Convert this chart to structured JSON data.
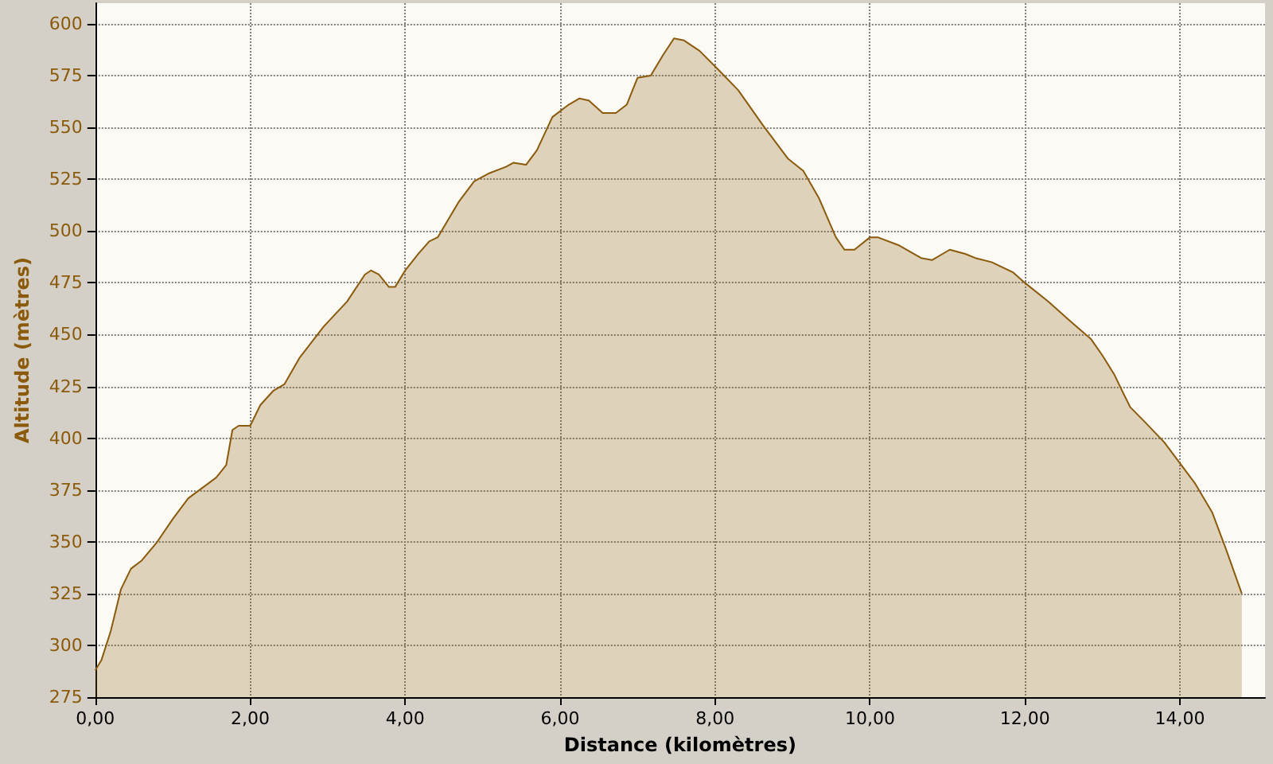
{
  "chart_data": {
    "type": "area",
    "xlabel": "Distance (kilomètres)",
    "ylabel": "Altitude (mètres)",
    "xlim": [
      0,
      15.1
    ],
    "ylim": [
      275,
      610
    ],
    "xticks": [
      {
        "value": 0,
        "label": "0,00"
      },
      {
        "value": 2,
        "label": "2,00"
      },
      {
        "value": 4,
        "label": "4,00"
      },
      {
        "value": 6,
        "label": "6,00"
      },
      {
        "value": 8,
        "label": "8,00"
      },
      {
        "value": 10,
        "label": "10,00"
      },
      {
        "value": 12,
        "label": "12,00"
      },
      {
        "value": 14,
        "label": "14,00"
      }
    ],
    "yticks": [
      275,
      300,
      325,
      350,
      375,
      400,
      425,
      450,
      475,
      500,
      525,
      550,
      575,
      600
    ],
    "grid": true,
    "marker": "none",
    "line_style": "solid",
    "series": [
      {
        "color": "#8b5a0a",
        "x": [
          0.0,
          0.08,
          0.2,
          0.33,
          0.46,
          0.6,
          0.8,
          1.0,
          1.2,
          1.38,
          1.56,
          1.69,
          1.77,
          1.85,
          2.0,
          2.13,
          2.3,
          2.44,
          2.64,
          2.95,
          3.25,
          3.48,
          3.56,
          3.66,
          3.79,
          3.87,
          4.0,
          4.17,
          4.31,
          4.42,
          4.69,
          4.89,
          5.09,
          5.3,
          5.4,
          5.56,
          5.7,
          5.9,
          6.11,
          6.25,
          6.37,
          6.55,
          6.72,
          6.86,
          7.0,
          7.17,
          7.33,
          7.47,
          7.6,
          7.8,
          8.04,
          8.3,
          8.62,
          8.94,
          9.14,
          9.34,
          9.56,
          9.67,
          9.8,
          10.0,
          10.1,
          10.38,
          10.66,
          10.8,
          11.03,
          11.23,
          11.36,
          11.57,
          11.85,
          12.0,
          12.3,
          12.6,
          12.85,
          13.0,
          13.15,
          13.28,
          13.36,
          13.57,
          13.8,
          14.0,
          14.2,
          14.42,
          14.6,
          14.8
        ],
        "values": [
          288,
          293,
          307,
          327,
          337,
          341,
          350,
          361,
          371,
          376,
          381,
          387,
          404,
          406,
          406,
          416,
          423,
          426,
          439,
          454,
          466,
          479,
          481,
          479,
          473,
          473,
          481,
          489,
          495,
          497,
          514,
          524,
          528,
          531,
          533,
          532,
          539,
          555,
          561,
          564,
          563,
          557,
          557,
          561,
          574,
          575,
          585,
          593,
          592,
          587,
          578,
          568,
          551,
          535,
          529,
          516,
          497,
          491,
          491,
          497,
          497,
          493,
          487,
          486,
          491,
          489,
          487,
          485,
          480,
          475,
          466,
          456,
          448,
          440,
          431,
          421,
          415,
          407,
          398,
          388,
          378,
          364,
          346,
          325
        ]
      }
    ]
  }
}
